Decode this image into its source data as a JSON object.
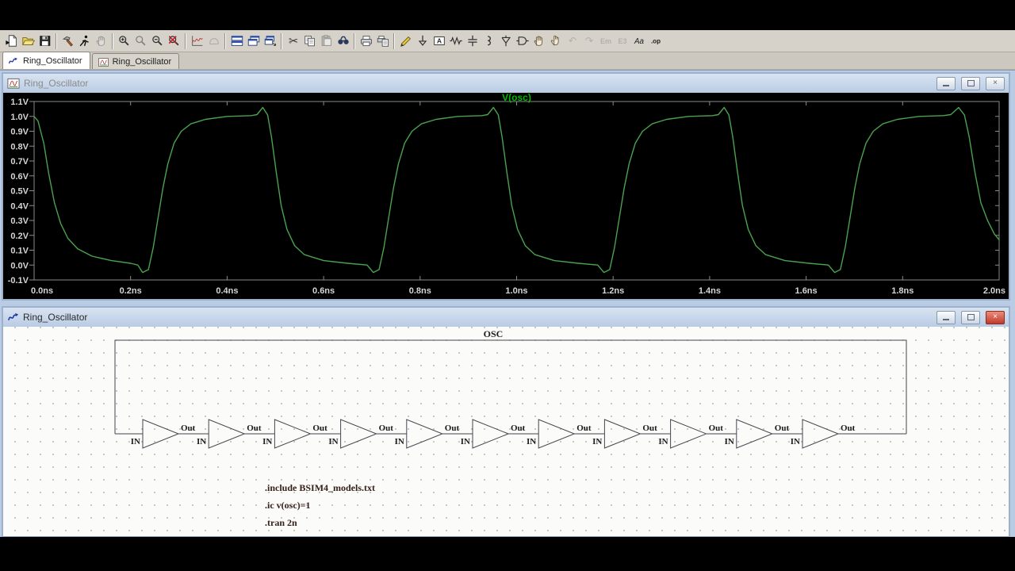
{
  "app": {
    "toolbar": [
      {
        "name": "new-file"
      },
      {
        "name": "open-file"
      },
      {
        "name": "save-file"
      },
      {
        "sep": true
      },
      {
        "name": "control-panel"
      },
      {
        "name": "run-simulation"
      },
      {
        "name": "halt-simulation",
        "grayed": true
      },
      {
        "sep": true
      },
      {
        "name": "zoom-in"
      },
      {
        "name": "zoom-back",
        "grayed": true
      },
      {
        "name": "zoom-out"
      },
      {
        "name": "zoom-full-extents"
      },
      {
        "sep": true
      },
      {
        "name": "autorange-y-axis"
      },
      {
        "name": "pan-view",
        "grayed": true
      },
      {
        "sep": true
      },
      {
        "name": "tile-horizontally"
      },
      {
        "name": "cascade-windows"
      },
      {
        "name": "tile-vertically"
      },
      {
        "sep": true
      },
      {
        "name": "cut"
      },
      {
        "name": "copy"
      },
      {
        "name": "paste",
        "grayed": true
      },
      {
        "name": "find"
      },
      {
        "sep": true
      },
      {
        "name": "print"
      },
      {
        "name": "print-preview"
      },
      {
        "sep": true
      },
      {
        "name": "draw-wire"
      },
      {
        "name": "place-ground"
      },
      {
        "name": "place-net-label"
      },
      {
        "name": "place-resistor"
      },
      {
        "name": "place-capacitor"
      },
      {
        "name": "place-inductor"
      },
      {
        "name": "place-diode"
      },
      {
        "name": "place-component"
      },
      {
        "name": "move"
      },
      {
        "name": "drag"
      },
      {
        "name": "undo",
        "grayed": true
      },
      {
        "name": "redo",
        "grayed": true
      },
      {
        "name": "mirror",
        "grayed": true
      },
      {
        "name": "rotate",
        "grayed": true
      },
      {
        "name": "place-text"
      },
      {
        "name": "spice-directive"
      }
    ],
    "tabs": [
      {
        "label": "Ring_Oscillator",
        "icon": "schematic-icon",
        "active": true
      },
      {
        "label": "Ring_Oscillator",
        "icon": "waveform-icon",
        "active": false
      }
    ]
  },
  "waveform_window": {
    "title": "Ring_Oscillator"
  },
  "chart_data": {
    "type": "line",
    "title": "V(osc)",
    "title_color": "#00bc00",
    "trace_color": "#4aa24e",
    "background": "#000000",
    "axis_color": "#8a8a8a",
    "tick_label_color": "#d6d6d6",
    "grid": false,
    "legend_position": "top-center",
    "xlim": [
      0,
      2
    ],
    "ylim": [
      -0.1,
      1.1
    ],
    "x_unit": "ns",
    "y_unit": "V",
    "x_ticks": [
      {
        "v": 0.0,
        "label": "0.0ns"
      },
      {
        "v": 0.2,
        "label": "0.2ns"
      },
      {
        "v": 0.4,
        "label": "0.4ns"
      },
      {
        "v": 0.6,
        "label": "0.6ns"
      },
      {
        "v": 0.8,
        "label": "0.8ns"
      },
      {
        "v": 1.0,
        "label": "1.0ns"
      },
      {
        "v": 1.2,
        "label": "1.2ns"
      },
      {
        "v": 1.4,
        "label": "1.4ns"
      },
      {
        "v": 1.6,
        "label": "1.6ns"
      },
      {
        "v": 1.8,
        "label": "1.8ns"
      },
      {
        "v": 2.0,
        "label": "2.0ns"
      }
    ],
    "y_ticks": [
      {
        "v": 1.1,
        "label": "1.1V"
      },
      {
        "v": 1.0,
        "label": "1.0V"
      },
      {
        "v": 0.9,
        "label": "0.9V"
      },
      {
        "v": 0.8,
        "label": "0.8V"
      },
      {
        "v": 0.7,
        "label": "0.7V"
      },
      {
        "v": 0.6,
        "label": "0.6V"
      },
      {
        "v": 0.5,
        "label": "0.5V"
      },
      {
        "v": 0.4,
        "label": "0.4V"
      },
      {
        "v": 0.3,
        "label": "0.3V"
      },
      {
        "v": 0.2,
        "label": "0.2V"
      },
      {
        "v": 0.1,
        "label": "0.1V"
      },
      {
        "v": 0.0,
        "label": "0.0V"
      },
      {
        "v": -0.1,
        "label": "-0.1V"
      }
    ],
    "series": [
      {
        "name": "V(osc)",
        "points": [
          [
            0,
            1.0
          ],
          [
            0.008,
            0.97
          ],
          [
            0.02,
            0.82
          ],
          [
            0.03,
            0.62
          ],
          [
            0.042,
            0.42
          ],
          [
            0.055,
            0.28
          ],
          [
            0.07,
            0.18
          ],
          [
            0.09,
            0.11
          ],
          [
            0.12,
            0.06
          ],
          [
            0.16,
            0.03
          ],
          [
            0.2,
            0.012
          ],
          [
            0.215,
            0.0
          ],
          [
            0.225,
            -0.05
          ],
          [
            0.237,
            -0.03
          ],
          [
            0.247,
            0.12
          ],
          [
            0.257,
            0.32
          ],
          [
            0.267,
            0.52
          ],
          [
            0.277,
            0.68
          ],
          [
            0.29,
            0.82
          ],
          [
            0.305,
            0.9
          ],
          [
            0.325,
            0.95
          ],
          [
            0.355,
            0.98
          ],
          [
            0.4,
            1.0
          ],
          [
            0.45,
            1.005
          ],
          [
            0.462,
            1.012
          ],
          [
            0.474,
            1.06
          ],
          [
            0.484,
            1.01
          ],
          [
            0.492,
            0.86
          ],
          [
            0.502,
            0.62
          ],
          [
            0.512,
            0.4
          ],
          [
            0.524,
            0.24
          ],
          [
            0.54,
            0.13
          ],
          [
            0.56,
            0.07
          ],
          [
            0.6,
            0.03
          ],
          [
            0.65,
            0.012
          ],
          [
            0.69,
            0.0
          ],
          [
            0.703,
            -0.05
          ],
          [
            0.715,
            -0.03
          ],
          [
            0.725,
            0.12
          ],
          [
            0.735,
            0.32
          ],
          [
            0.745,
            0.52
          ],
          [
            0.755,
            0.68
          ],
          [
            0.768,
            0.82
          ],
          [
            0.783,
            0.9
          ],
          [
            0.803,
            0.95
          ],
          [
            0.833,
            0.98
          ],
          [
            0.878,
            1.0
          ],
          [
            0.928,
            1.005
          ],
          [
            0.94,
            1.012
          ],
          [
            0.952,
            1.06
          ],
          [
            0.962,
            1.01
          ],
          [
            0.97,
            0.86
          ],
          [
            0.98,
            0.62
          ],
          [
            0.99,
            0.4
          ],
          [
            1.002,
            0.24
          ],
          [
            1.018,
            0.13
          ],
          [
            1.038,
            0.07
          ],
          [
            1.078,
            0.03
          ],
          [
            1.128,
            0.012
          ],
          [
            1.168,
            0.0
          ],
          [
            1.181,
            -0.05
          ],
          [
            1.193,
            -0.03
          ],
          [
            1.203,
            0.12
          ],
          [
            1.213,
            0.32
          ],
          [
            1.223,
            0.52
          ],
          [
            1.233,
            0.68
          ],
          [
            1.246,
            0.82
          ],
          [
            1.261,
            0.9
          ],
          [
            1.281,
            0.95
          ],
          [
            1.311,
            0.98
          ],
          [
            1.356,
            1.0
          ],
          [
            1.406,
            1.005
          ],
          [
            1.418,
            1.012
          ],
          [
            1.43,
            1.06
          ],
          [
            1.44,
            1.01
          ],
          [
            1.448,
            0.86
          ],
          [
            1.458,
            0.62
          ],
          [
            1.468,
            0.4
          ],
          [
            1.48,
            0.24
          ],
          [
            1.496,
            0.13
          ],
          [
            1.516,
            0.07
          ],
          [
            1.556,
            0.03
          ],
          [
            1.606,
            0.012
          ],
          [
            1.646,
            0.0
          ],
          [
            1.659,
            -0.05
          ],
          [
            1.671,
            -0.03
          ],
          [
            1.681,
            0.12
          ],
          [
            1.691,
            0.32
          ],
          [
            1.701,
            0.52
          ],
          [
            1.711,
            0.68
          ],
          [
            1.724,
            0.82
          ],
          [
            1.739,
            0.9
          ],
          [
            1.759,
            0.95
          ],
          [
            1.789,
            0.98
          ],
          [
            1.834,
            1.0
          ],
          [
            1.884,
            1.005
          ],
          [
            1.9,
            1.012
          ],
          [
            1.916,
            1.06
          ],
          [
            1.928,
            1.01
          ],
          [
            1.938,
            0.86
          ],
          [
            1.95,
            0.62
          ],
          [
            1.962,
            0.42
          ],
          [
            1.976,
            0.3
          ],
          [
            1.99,
            0.21
          ],
          [
            2.0,
            0.17
          ]
        ]
      }
    ]
  },
  "schematic_window": {
    "title": "Ring_Oscillator",
    "net_label": "OSC",
    "inverter_count": 11,
    "input_pin_label": "IN",
    "output_pin_label": "Out",
    "directives": [
      ".include BSIM4_models.txt",
      ".ic v(osc)=1",
      ".tran 2n"
    ],
    "wire_color": "#46464f",
    "text_color": "#1c1c1c",
    "directive_color": "#35201a"
  }
}
